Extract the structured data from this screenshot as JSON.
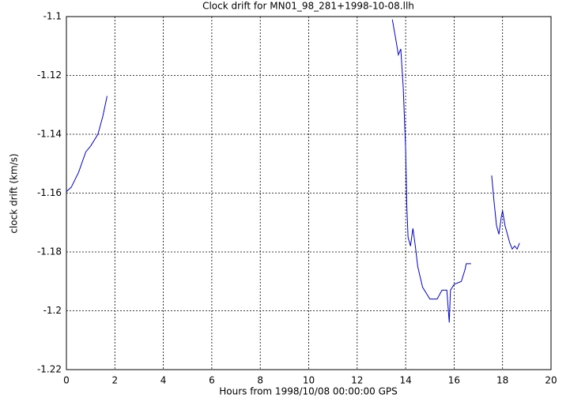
{
  "chart_data": {
    "type": "line",
    "title": "Clock drift for MN01_98_281+1998-10-08.llh",
    "x_label": "Hours from 1998/10/08 00:00:00 GPS",
    "y_label": "clock drift (km/s)",
    "x": [
      0,
      0.2,
      0.5,
      0.8,
      1.0,
      1.3,
      1.5,
      1.68,
      null,
      13.45,
      13.6,
      13.7,
      13.8,
      13.9,
      14.0,
      14.05,
      14.1,
      14.2,
      14.3,
      14.4,
      14.5,
      14.7,
      15.0,
      15.3,
      15.5,
      15.7,
      15.8,
      15.85,
      16.0,
      16.3,
      16.45,
      16.5,
      16.7,
      null,
      17.55,
      17.65,
      17.75,
      17.85,
      17.95,
      18.0,
      18.1,
      18.3,
      18.4,
      18.5,
      18.6,
      18.7
    ],
    "series": [
      {
        "color": "#0000cc",
        "values": [
          -1.1595,
          -1.158,
          -1.153,
          -1.146,
          -1.144,
          -1.14,
          -1.134,
          -1.127,
          null,
          -1.101,
          -1.108,
          -1.113,
          -1.111,
          -1.124,
          -1.145,
          -1.165,
          -1.175,
          -1.178,
          -1.172,
          -1.178,
          -1.185,
          -1.192,
          -1.196,
          -1.196,
          -1.193,
          -1.193,
          -1.204,
          -1.193,
          -1.191,
          -1.19,
          -1.186,
          -1.184,
          -1.184,
          null,
          -1.154,
          -1.163,
          -1.171,
          -1.174,
          -1.168,
          -1.166,
          -1.171,
          -1.177,
          -1.179,
          -1.178,
          -1.179,
          -1.177
        ]
      }
    ],
    "xlim": [
      0,
      20
    ],
    "xticks": [
      0,
      2,
      4,
      6,
      8,
      10,
      12,
      14,
      16,
      18,
      20
    ],
    "ylim": [
      -1.22,
      -1.1
    ],
    "yticks": [
      -1.22,
      -1.2,
      -1.18,
      -1.16,
      -1.14,
      -1.12,
      -1.1
    ],
    "grid": true
  }
}
